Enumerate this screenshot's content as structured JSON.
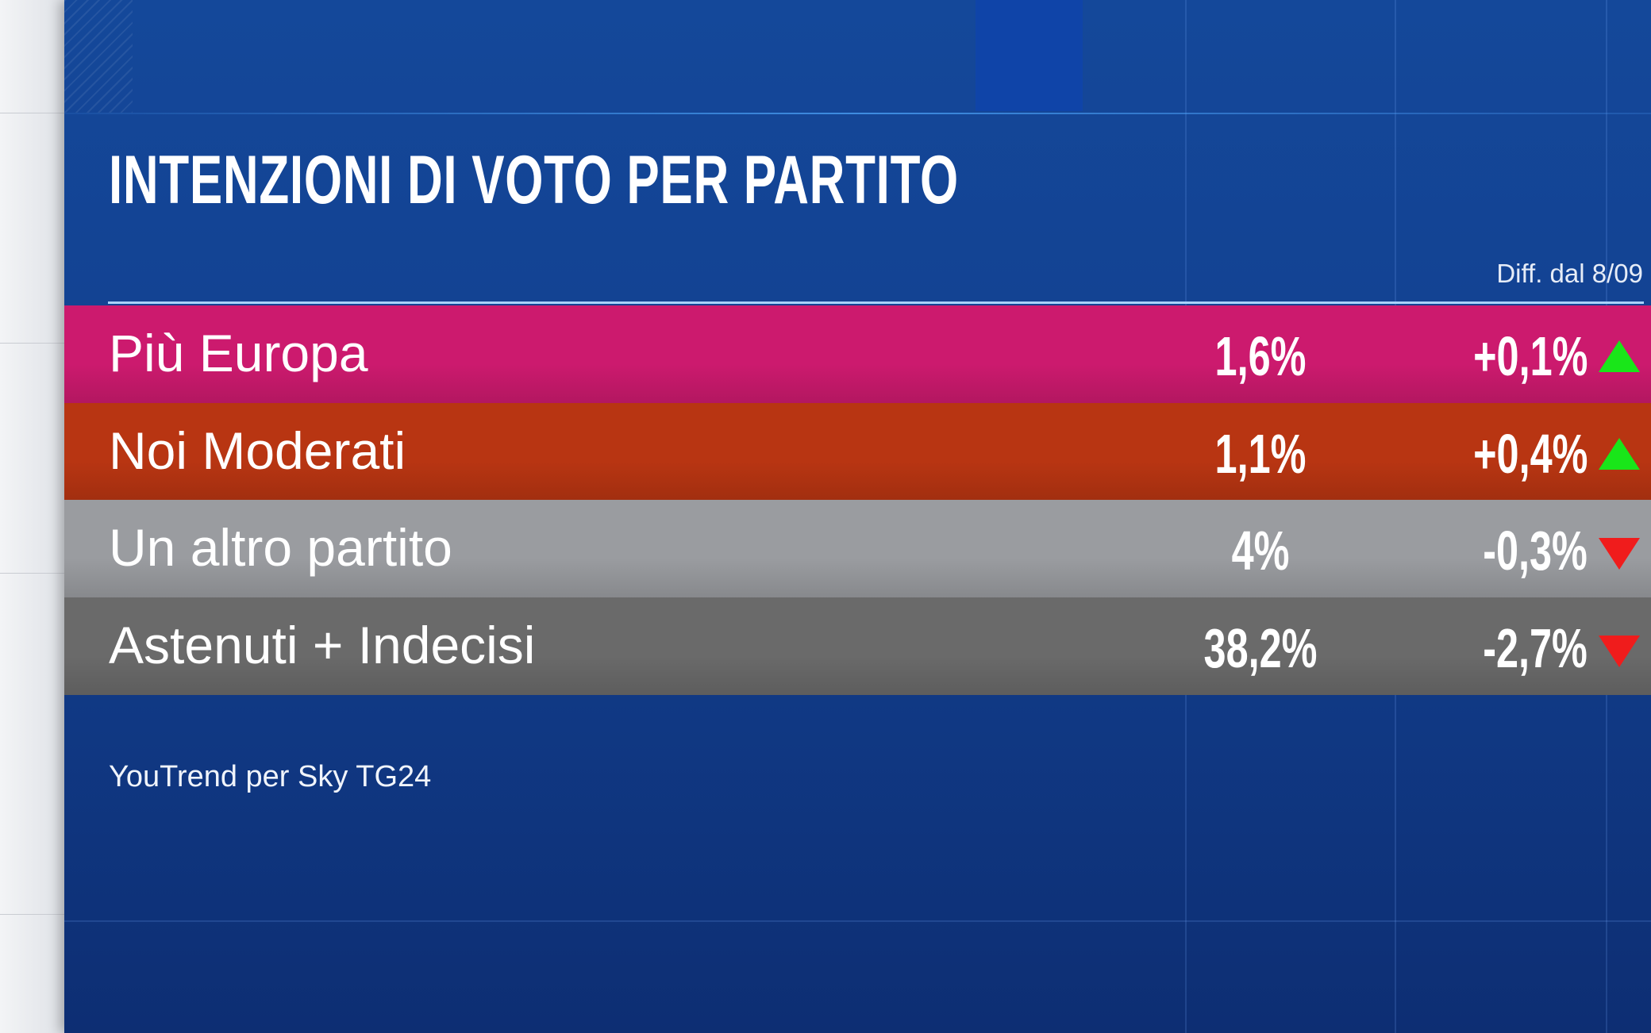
{
  "title": "INTENZIONI DI VOTO PER PARTITO",
  "diff_label": "Diff. dal 8/09",
  "source": "YouTrend per Sky TG24",
  "colors": {
    "up": "#19e619",
    "down": "#f01c1c"
  },
  "chart_data": {
    "type": "table",
    "title": "INTENZIONI DI VOTO PER PARTITO",
    "columns": [
      "",
      "",
      "Diff. dal 8/09"
    ],
    "rows": [
      {
        "party": "Più Europa",
        "value": "1,6%",
        "change": "+0,1%",
        "direction": "up",
        "color": "#cc1a6e"
      },
      {
        "party": "Noi Moderati",
        "value": "1,1%",
        "change": "+0,4%",
        "direction": "up",
        "color": "#b83512"
      },
      {
        "party": "Un altro partito",
        "value": "4%",
        "change": "-0,3%",
        "direction": "down",
        "color": "#9a9ca0"
      },
      {
        "party": "Astenuti + Indecisi",
        "value": "38,2%",
        "change": "-2,7%",
        "direction": "down",
        "color": "#6a6a6a"
      }
    ]
  }
}
